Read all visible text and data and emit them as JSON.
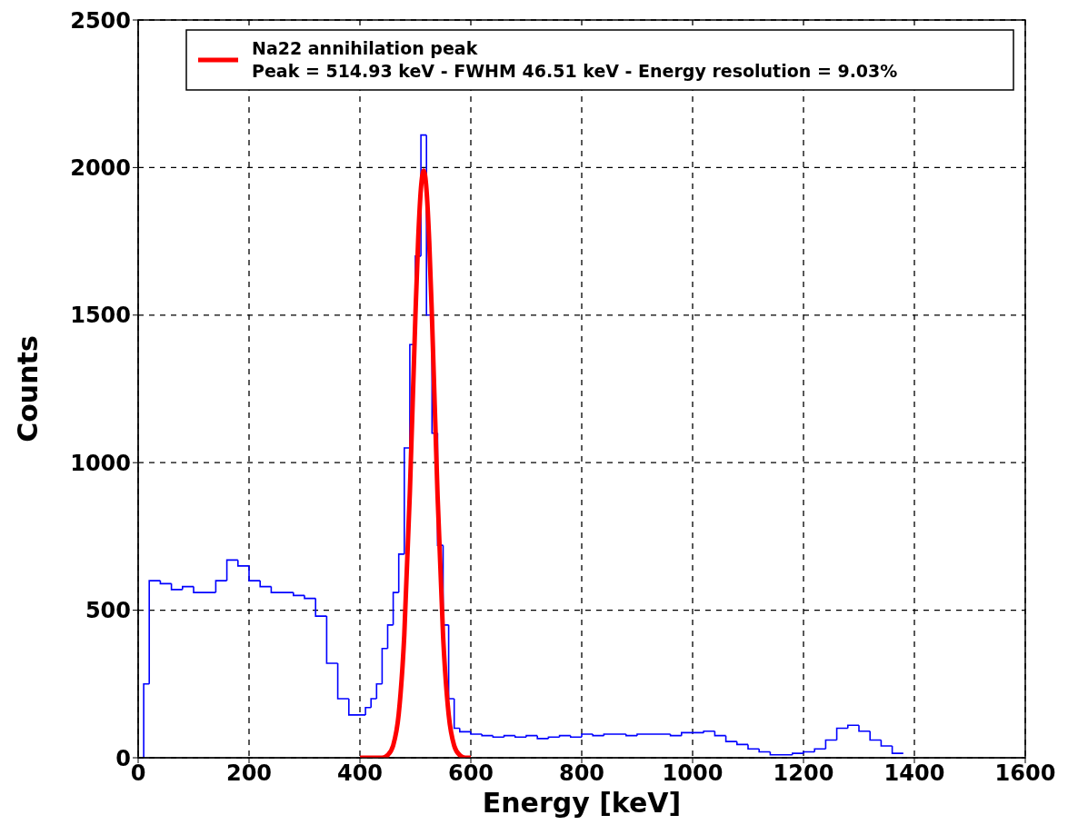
{
  "chart_data": {
    "type": "histogram",
    "xlabel": "Energy [keV]",
    "ylabel": "Counts",
    "xlim": [
      0,
      1600
    ],
    "xticks": [
      0,
      200,
      400,
      600,
      800,
      1000,
      1200,
      1400,
      1600
    ],
    "ylim": [
      0,
      2500
    ],
    "yticks": [
      0,
      500,
      1000,
      1500,
      2000,
      2500
    ],
    "grid": true,
    "legend": "top right",
    "series": [
      {
        "color": "#0000ff",
        "bins": [
          10,
          20,
          40,
          60,
          80,
          100,
          140,
          160,
          180,
          200,
          220,
          240,
          280,
          300,
          320,
          340,
          360,
          380,
          410,
          420,
          430,
          440,
          450,
          460,
          470,
          480,
          490,
          500,
          510,
          520,
          530,
          540,
          550,
          560,
          570,
          580,
          600,
          620,
          640,
          660,
          680,
          700,
          720,
          740,
          760,
          780,
          800,
          820,
          840,
          880,
          900,
          960,
          980,
          1020,
          1040,
          1060,
          1080,
          1100,
          1120,
          1140,
          1180,
          1200,
          1220,
          1240,
          1260,
          1280,
          1300,
          1320,
          1340,
          1360,
          1380
        ],
        "values": [
          250,
          600,
          590,
          570,
          580,
          560,
          600,
          670,
          650,
          600,
          580,
          560,
          550,
          540,
          480,
          320,
          200,
          145,
          170,
          200,
          250,
          370,
          450,
          560,
          690,
          1050,
          1400,
          1700,
          2110,
          1500,
          1100,
          720,
          450,
          200,
          100,
          88,
          80,
          75,
          70,
          75,
          70,
          75,
          65,
          70,
          75,
          70,
          80,
          75,
          80,
          75,
          80,
          75,
          85,
          90,
          75,
          55,
          45,
          30,
          20,
          10,
          15,
          20,
          30,
          60,
          100,
          110,
          90,
          60,
          40,
          15
        ]
      },
      {
        "type": "line",
        "name": "Na22 annihilation peak\nPeak = 514.93 keV - FWHM 46.51 keV - Energy resolution = 9.03%",
        "color": "#ff0000",
        "x": [
          400,
          420,
          440,
          450,
          460,
          470,
          480,
          490,
          500,
          505,
          510,
          515,
          520,
          525,
          530,
          540,
          550,
          560,
          570,
          580,
          590,
          600
        ],
        "values": [
          0,
          0,
          0,
          9,
          42,
          149,
          416,
          897,
          1495,
          1754,
          1929,
          1990,
          1926,
          1747,
          1487,
          889,
          411,
          147,
          41,
          9,
          0,
          0
        ]
      }
    ]
  }
}
